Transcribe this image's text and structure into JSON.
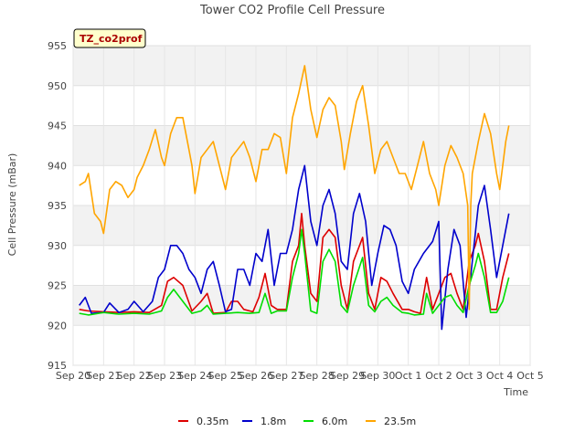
{
  "chart_data": {
    "type": "line",
    "title": "Tower CO2 Profile Cell Pressure",
    "badge": "TZ_co2prof",
    "xlabel": "Time",
    "ylabel": "Cell Pressure (mBar)",
    "xlim": [
      0,
      15
    ],
    "ylim": [
      915,
      955
    ],
    "x_ticks": [
      {
        "v": 0,
        "label": "Sep 20"
      },
      {
        "v": 1,
        "label": "Sep 21"
      },
      {
        "v": 2,
        "label": "Sep 22"
      },
      {
        "v": 3,
        "label": "Sep 23"
      },
      {
        "v": 4,
        "label": "Sep 24"
      },
      {
        "v": 5,
        "label": "Sep 25"
      },
      {
        "v": 6,
        "label": "Sep 26"
      },
      {
        "v": 7,
        "label": "Sep 27"
      },
      {
        "v": 8,
        "label": "Sep 28"
      },
      {
        "v": 9,
        "label": "Sep 29"
      },
      {
        "v": 10,
        "label": "Sep 30"
      },
      {
        "v": 11,
        "label": "Oct 1"
      },
      {
        "v": 12,
        "label": "Oct 2"
      },
      {
        "v": 13,
        "label": "Oct 3"
      },
      {
        "v": 14,
        "label": "Oct 4"
      },
      {
        "v": 15,
        "label": "Oct 5"
      }
    ],
    "y_ticks": [
      915,
      920,
      925,
      930,
      935,
      940,
      945,
      950,
      955
    ],
    "grid": true,
    "legend_position": "bottom",
    "series": [
      {
        "name": "0.35m",
        "color": "#dd0000",
        "points": [
          [
            0.2,
            922
          ],
          [
            0.5,
            921.8
          ],
          [
            1.0,
            921.7
          ],
          [
            1.5,
            921.6
          ],
          [
            2.0,
            921.7
          ],
          [
            2.5,
            921.6
          ],
          [
            2.9,
            922.5
          ],
          [
            3.1,
            925.5
          ],
          [
            3.3,
            926
          ],
          [
            3.6,
            925
          ],
          [
            3.9,
            921.8
          ],
          [
            4.2,
            923
          ],
          [
            4.4,
            924
          ],
          [
            4.6,
            921.5
          ],
          [
            5.0,
            921.6
          ],
          [
            5.2,
            923
          ],
          [
            5.4,
            923
          ],
          [
            5.6,
            922
          ],
          [
            5.9,
            921.7
          ],
          [
            6.1,
            923.5
          ],
          [
            6.3,
            926.5
          ],
          [
            6.5,
            922.5
          ],
          [
            6.7,
            922
          ],
          [
            7.0,
            922
          ],
          [
            7.2,
            928
          ],
          [
            7.4,
            930
          ],
          [
            7.5,
            934
          ],
          [
            7.6,
            930
          ],
          [
            7.8,
            924
          ],
          [
            8.0,
            923
          ],
          [
            8.2,
            931
          ],
          [
            8.4,
            932
          ],
          [
            8.6,
            931
          ],
          [
            8.8,
            925
          ],
          [
            9.0,
            922
          ],
          [
            9.2,
            928
          ],
          [
            9.5,
            931
          ],
          [
            9.7,
            924
          ],
          [
            9.9,
            922
          ],
          [
            10.1,
            926
          ],
          [
            10.3,
            925.5
          ],
          [
            10.5,
            924
          ],
          [
            10.8,
            922
          ],
          [
            11.0,
            922
          ],
          [
            11.2,
            921.7
          ],
          [
            11.4,
            921.5
          ],
          [
            11.6,
            926
          ],
          [
            11.8,
            922
          ],
          [
            12.0,
            924
          ],
          [
            12.2,
            926
          ],
          [
            12.4,
            926.5
          ],
          [
            12.6,
            924
          ],
          [
            12.8,
            922
          ],
          [
            13.0,
            928
          ],
          [
            13.2,
            930
          ],
          [
            13.3,
            931.5
          ],
          [
            13.5,
            928
          ],
          [
            13.7,
            922
          ],
          [
            13.9,
            922
          ],
          [
            14.1,
            926
          ],
          [
            14.3,
            929
          ]
        ]
      },
      {
        "name": "1.8m",
        "color": "#0000cc",
        "points": [
          [
            0.2,
            922.5
          ],
          [
            0.4,
            923.5
          ],
          [
            0.6,
            921.5
          ],
          [
            1.0,
            921.6
          ],
          [
            1.2,
            922.8
          ],
          [
            1.5,
            921.6
          ],
          [
            1.8,
            922
          ],
          [
            2.0,
            923
          ],
          [
            2.3,
            921.7
          ],
          [
            2.6,
            923
          ],
          [
            2.8,
            926
          ],
          [
            3.0,
            927
          ],
          [
            3.2,
            930
          ],
          [
            3.4,
            930
          ],
          [
            3.6,
            929
          ],
          [
            3.8,
            927
          ],
          [
            4.0,
            926
          ],
          [
            4.2,
            924
          ],
          [
            4.4,
            927
          ],
          [
            4.6,
            928
          ],
          [
            4.8,
            925
          ],
          [
            5.0,
            921.7
          ],
          [
            5.2,
            922
          ],
          [
            5.4,
            927
          ],
          [
            5.6,
            927
          ],
          [
            5.8,
            925
          ],
          [
            6.0,
            929
          ],
          [
            6.2,
            928
          ],
          [
            6.4,
            932
          ],
          [
            6.6,
            925
          ],
          [
            6.8,
            929
          ],
          [
            7.0,
            929
          ],
          [
            7.2,
            932
          ],
          [
            7.4,
            937
          ],
          [
            7.6,
            940
          ],
          [
            7.8,
            933
          ],
          [
            8.0,
            930
          ],
          [
            8.2,
            935
          ],
          [
            8.4,
            937
          ],
          [
            8.6,
            934
          ],
          [
            8.8,
            928
          ],
          [
            9.0,
            927
          ],
          [
            9.2,
            934
          ],
          [
            9.4,
            936.5
          ],
          [
            9.6,
            933
          ],
          [
            9.8,
            925
          ],
          [
            10.0,
            929
          ],
          [
            10.2,
            932.5
          ],
          [
            10.4,
            932
          ],
          [
            10.6,
            930
          ],
          [
            10.8,
            925.5
          ],
          [
            11.0,
            924
          ],
          [
            11.2,
            927
          ],
          [
            11.5,
            929
          ],
          [
            11.8,
            930.5
          ],
          [
            12.0,
            933
          ],
          [
            12.1,
            919.5
          ],
          [
            12.3,
            927
          ],
          [
            12.5,
            932
          ],
          [
            12.7,
            930
          ],
          [
            12.9,
            921
          ],
          [
            13.1,
            928
          ],
          [
            13.3,
            935
          ],
          [
            13.5,
            937.5
          ],
          [
            13.7,
            932
          ],
          [
            13.9,
            926
          ],
          [
            14.1,
            930
          ],
          [
            14.3,
            934
          ]
        ]
      },
      {
        "name": "6.0m",
        "color": "#00dd00",
        "points": [
          [
            0.2,
            921.5
          ],
          [
            0.5,
            921.3
          ],
          [
            1.0,
            921.6
          ],
          [
            1.5,
            921.4
          ],
          [
            2.0,
            921.5
          ],
          [
            2.5,
            921.4
          ],
          [
            2.9,
            921.8
          ],
          [
            3.1,
            923.5
          ],
          [
            3.3,
            924.5
          ],
          [
            3.6,
            923
          ],
          [
            3.9,
            921.5
          ],
          [
            4.2,
            921.8
          ],
          [
            4.4,
            922.5
          ],
          [
            4.6,
            921.4
          ],
          [
            5.0,
            921.5
          ],
          [
            5.4,
            921.6
          ],
          [
            5.8,
            921.5
          ],
          [
            6.1,
            921.6
          ],
          [
            6.3,
            924
          ],
          [
            6.5,
            921.5
          ],
          [
            6.7,
            921.8
          ],
          [
            7.0,
            921.8
          ],
          [
            7.2,
            926
          ],
          [
            7.4,
            929
          ],
          [
            7.5,
            932
          ],
          [
            7.6,
            929
          ],
          [
            7.8,
            921.8
          ],
          [
            8.0,
            921.5
          ],
          [
            8.2,
            928
          ],
          [
            8.4,
            929.5
          ],
          [
            8.6,
            928
          ],
          [
            8.8,
            922.5
          ],
          [
            9.0,
            921.6
          ],
          [
            9.2,
            925
          ],
          [
            9.5,
            928.5
          ],
          [
            9.7,
            922.5
          ],
          [
            9.9,
            921.7
          ],
          [
            10.1,
            923
          ],
          [
            10.3,
            923.5
          ],
          [
            10.5,
            922.5
          ],
          [
            10.8,
            921.6
          ],
          [
            11.0,
            921.5
          ],
          [
            11.2,
            921.3
          ],
          [
            11.5,
            921.4
          ],
          [
            11.6,
            924
          ],
          [
            11.8,
            921.5
          ],
          [
            12.0,
            922.5
          ],
          [
            12.2,
            923.5
          ],
          [
            12.4,
            923.8
          ],
          [
            12.6,
            922.5
          ],
          [
            12.8,
            921.6
          ],
          [
            13.0,
            925
          ],
          [
            13.2,
            927.5
          ],
          [
            13.3,
            929
          ],
          [
            13.5,
            926
          ],
          [
            13.7,
            921.6
          ],
          [
            13.9,
            921.6
          ],
          [
            14.1,
            923
          ],
          [
            14.3,
            926
          ]
        ]
      },
      {
        "name": "23.5m",
        "color": "#ffa500",
        "points": [
          [
            0.2,
            937.5
          ],
          [
            0.4,
            938
          ],
          [
            0.5,
            939
          ],
          [
            0.7,
            934
          ],
          [
            0.9,
            933
          ],
          [
            1.0,
            931.5
          ],
          [
            1.2,
            937
          ],
          [
            1.4,
            938
          ],
          [
            1.6,
            937.5
          ],
          [
            1.8,
            936
          ],
          [
            2.0,
            937
          ],
          [
            2.1,
            938.5
          ],
          [
            2.3,
            940
          ],
          [
            2.5,
            942
          ],
          [
            2.7,
            944.5
          ],
          [
            2.9,
            941
          ],
          [
            3.0,
            940
          ],
          [
            3.2,
            944
          ],
          [
            3.4,
            946
          ],
          [
            3.6,
            946
          ],
          [
            3.8,
            942
          ],
          [
            3.9,
            940
          ],
          [
            4.0,
            936.5
          ],
          [
            4.2,
            941
          ],
          [
            4.4,
            942
          ],
          [
            4.6,
            943
          ],
          [
            4.8,
            940
          ],
          [
            5.0,
            937
          ],
          [
            5.2,
            941
          ],
          [
            5.4,
            942
          ],
          [
            5.6,
            943
          ],
          [
            5.8,
            941
          ],
          [
            6.0,
            938
          ],
          [
            6.2,
            942
          ],
          [
            6.4,
            942
          ],
          [
            6.6,
            944
          ],
          [
            6.8,
            943.5
          ],
          [
            7.0,
            939
          ],
          [
            7.2,
            946
          ],
          [
            7.4,
            949
          ],
          [
            7.6,
            952.5
          ],
          [
            7.8,
            947
          ],
          [
            8.0,
            943.5
          ],
          [
            8.2,
            947
          ],
          [
            8.4,
            948.5
          ],
          [
            8.6,
            947.5
          ],
          [
            8.8,
            943
          ],
          [
            8.9,
            939.5
          ],
          [
            9.1,
            944
          ],
          [
            9.3,
            948
          ],
          [
            9.5,
            950
          ],
          [
            9.7,
            945
          ],
          [
            9.9,
            939
          ],
          [
            10.1,
            942
          ],
          [
            10.3,
            943
          ],
          [
            10.5,
            941
          ],
          [
            10.7,
            939
          ],
          [
            10.9,
            939
          ],
          [
            11.1,
            937
          ],
          [
            11.3,
            940
          ],
          [
            11.5,
            943
          ],
          [
            11.7,
            939
          ],
          [
            11.9,
            937
          ],
          [
            12.0,
            935
          ],
          [
            12.2,
            940
          ],
          [
            12.4,
            942.5
          ],
          [
            12.6,
            941
          ],
          [
            12.8,
            939
          ],
          [
            12.95,
            935
          ],
          [
            13.0,
            922
          ],
          [
            13.05,
            935
          ],
          [
            13.1,
            939
          ],
          [
            13.3,
            943
          ],
          [
            13.5,
            946.5
          ],
          [
            13.7,
            944
          ],
          [
            13.9,
            939
          ],
          [
            14.0,
            937
          ],
          [
            14.2,
            943
          ],
          [
            14.3,
            945
          ]
        ]
      }
    ]
  }
}
